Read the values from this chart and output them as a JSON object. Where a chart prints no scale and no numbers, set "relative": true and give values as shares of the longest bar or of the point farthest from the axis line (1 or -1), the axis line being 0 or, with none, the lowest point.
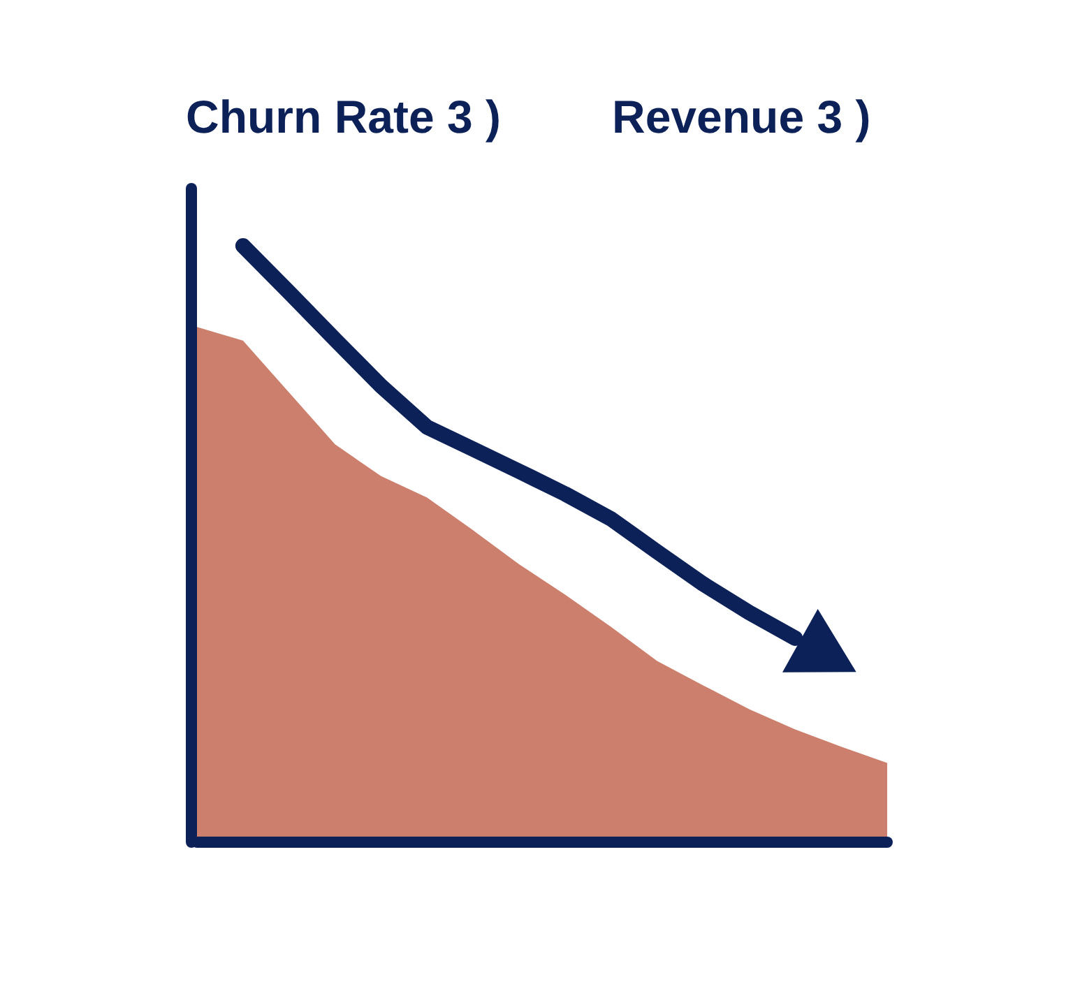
{
  "chart_data": {
    "type": "area",
    "title": "Churn Rate 3 )",
    "subtitle": "Revenue 3 )",
    "relative": true,
    "categories": [
      null,
      null,
      null,
      null,
      null,
      null,
      null,
      null,
      null,
      null,
      null,
      null,
      null,
      null,
      null,
      null
    ],
    "series": [
      {
        "color": "#cd7f6d",
        "values": [
          0.864,
          0.841,
          0.754,
          0.667,
          0.614,
          0.578,
          0.523,
          0.466,
          0.415,
          0.361,
          0.304,
          0.263,
          0.223,
          0.189,
          0.16,
          0.133
        ]
      },
      {
        "type": "line",
        "color": "#0c2157",
        "values": [
          null,
          1,
          0.922,
          0.843,
          0.765,
          0.696,
          0.659,
          0.622,
          0.584,
          0.542,
          0.487,
          0.433,
          0.385,
          0.342,
          null,
          null
        ]
      }
    ],
    "marker": "none"
  }
}
